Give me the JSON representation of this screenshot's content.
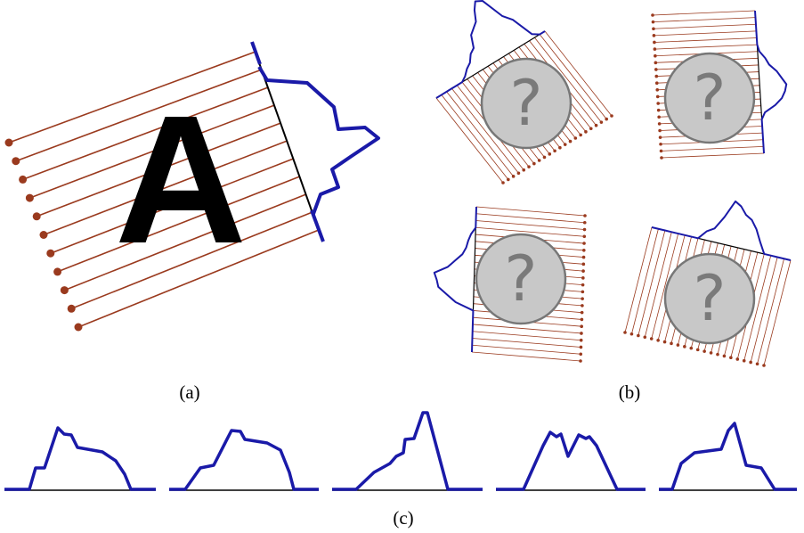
{
  "panels": [
    {
      "label": "(a)"
    },
    {
      "label": "(b)"
    },
    {
      "label": "(c)"
    }
  ],
  "letter": "A",
  "unknowns": [
    "?",
    "?",
    "?",
    "?"
  ]
}
